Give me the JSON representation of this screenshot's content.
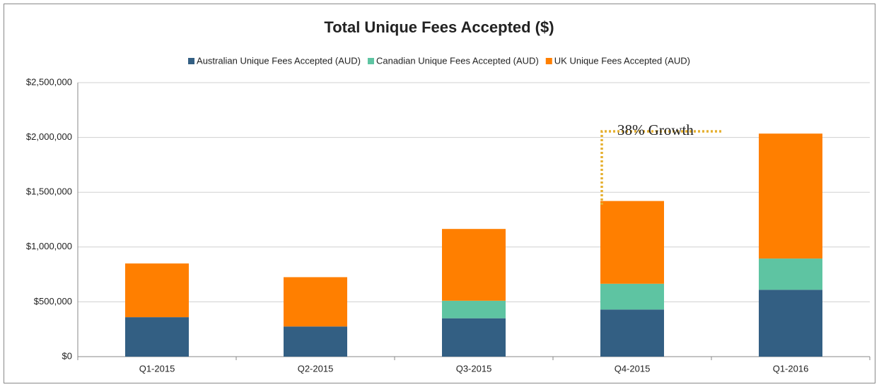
{
  "chart_data": {
    "type": "bar",
    "stacked": true,
    "title": "Total Unique Fees Accepted ($)",
    "categories": [
      "Q1-2015",
      "Q2-2015",
      "Q3-2015",
      "Q4-2015",
      "Q1-2016"
    ],
    "series": [
      {
        "name": "Australian Unique Fees Accepted (AUD)",
        "color": "#335f83",
        "values": [
          360000,
          275000,
          350000,
          430000,
          610000
        ]
      },
      {
        "name": "Canadian Unique Fees Accepted (AUD)",
        "color": "#5ec4a2",
        "values": [
          0,
          0,
          160000,
          235000,
          285000
        ]
      },
      {
        "name": "UK Unique Fees Accepted (AUD)",
        "color": "#ff7f00",
        "values": [
          490000,
          450000,
          655000,
          755000,
          1140000
        ]
      }
    ],
    "ylim": [
      0,
      2500000
    ],
    "yticks": [
      {
        "value": 0,
        "label": "$0"
      },
      {
        "value": 500000,
        "label": "$500,000"
      },
      {
        "value": 1000000,
        "label": "$1,000,000"
      },
      {
        "value": 1500000,
        "label": "$1,500,000"
      },
      {
        "value": 2000000,
        "label": "$2,000,000"
      },
      {
        "value": 2500000,
        "label": "$2,500,000"
      }
    ],
    "grid": true,
    "legend": "top",
    "annotations": [
      "38% Growth"
    ]
  }
}
